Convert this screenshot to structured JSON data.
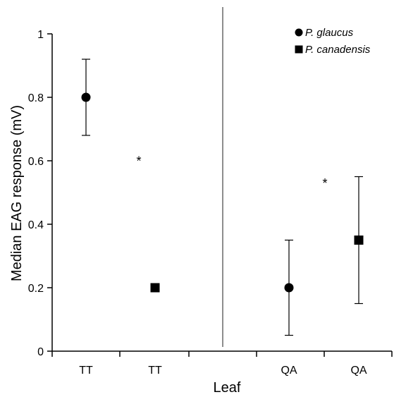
{
  "chart_data": {
    "type": "scatter",
    "xlabel": "Leaf",
    "ylabel": "Median EAG response (mV)",
    "ylim": [
      0,
      1
    ],
    "yticks": [
      "0",
      "0.2",
      "0.4",
      "0.6",
      "0.8",
      "1"
    ],
    "categories": [
      "TT",
      "TT",
      "QA",
      "QA"
    ],
    "series": [
      {
        "name": "P. glaucus",
        "marker": "circle",
        "color": "#000000",
        "points": [
          {
            "category_index": 0,
            "value": 0.8,
            "error_low": 0.68,
            "error_high": 0.92
          },
          {
            "category_index": 2,
            "value": 0.2,
            "error_low": 0.05,
            "error_high": 0.35
          }
        ]
      },
      {
        "name": "P. canadensis",
        "marker": "square",
        "color": "#000000",
        "points": [
          {
            "category_index": 1,
            "value": 0.2,
            "error_low": null,
            "error_high": null
          },
          {
            "category_index": 3,
            "value": 0.35,
            "error_low": 0.15,
            "error_high": 0.55
          }
        ]
      }
    ],
    "annotations": [
      {
        "text": "*",
        "x_between": [
          0,
          1
        ],
        "y": 0.63
      },
      {
        "text": "*",
        "x_between": [
          2,
          3
        ],
        "y": 0.56
      }
    ],
    "legend": {
      "position": "top-right"
    },
    "grid": false
  }
}
